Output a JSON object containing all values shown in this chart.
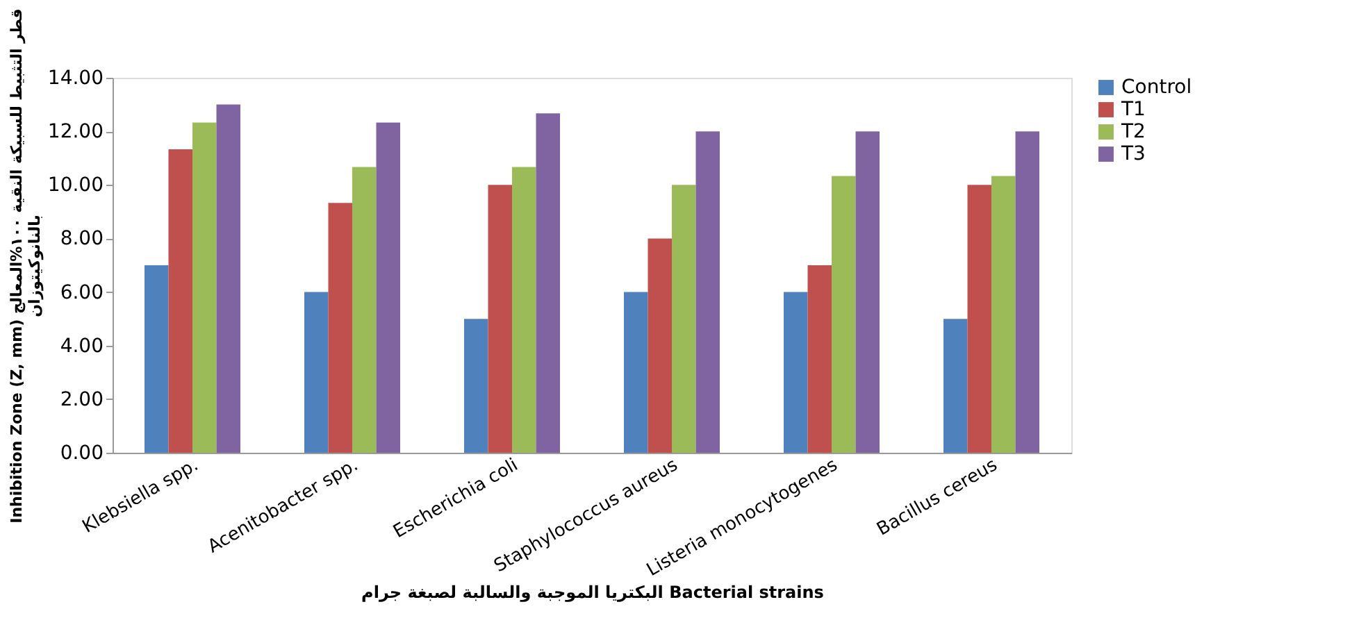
{
  "chart_data": {
    "type": "bar",
    "xlabel": "البكتريا الموجبة والسالبة لصبغة جرام Bacterial strains",
    "ylabel": [
      "Inhibition Zone (Z, mm) قطر التثبيط للسبيكة النقية ١٠٠%المعالج",
      "بالنانوكيتوزان"
    ],
    "categories": [
      "Klebsiella spp.",
      "Acenitobacter spp.",
      "Escherichia coli",
      "Staphylococcus aureus",
      "Listeria monocytogenes",
      "Bacillus cereus"
    ],
    "series": [
      {
        "name": "Control",
        "color": "#4f81bd",
        "values": [
          7,
          6,
          5,
          6,
          6,
          5
        ]
      },
      {
        "name": "T1",
        "color": "#c0504d",
        "values": [
          11.33,
          9.33,
          10,
          8,
          7,
          10
        ]
      },
      {
        "name": "T2",
        "color": "#9bbb59",
        "values": [
          12.33,
          10.67,
          10.67,
          10,
          10.33,
          10.33
        ]
      },
      {
        "name": "T3",
        "color": "#8064a2",
        "values": [
          13,
          12.33,
          12.67,
          12,
          12,
          12
        ]
      }
    ],
    "ylim": [
      0,
      14
    ],
    "yticks": [
      {
        "value": 0,
        "label": "0.00"
      },
      {
        "value": 2,
        "label": "2.00"
      },
      {
        "value": 4,
        "label": "4.00"
      },
      {
        "value": 6,
        "label": "6.00"
      },
      {
        "value": 8,
        "label": "8.00"
      },
      {
        "value": 10,
        "label": "10.00"
      },
      {
        "value": 12,
        "label": "12.00"
      },
      {
        "value": 14,
        "label": "14.00"
      }
    ],
    "grid": false,
    "legend": "right"
  }
}
